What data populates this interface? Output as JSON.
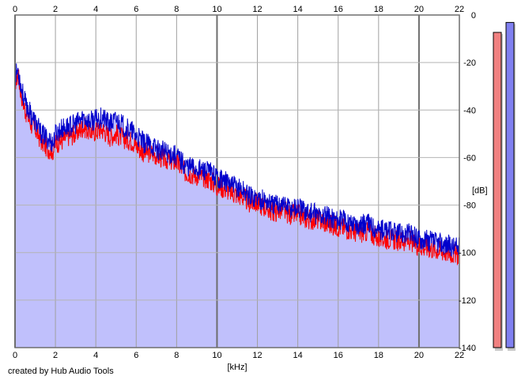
{
  "chart_data": {
    "type": "area",
    "xlabel": "[kHz]",
    "ylabel": "[dB]",
    "xlim": [
      0,
      22
    ],
    "ylim": [
      -140,
      0
    ],
    "x_ticks": [
      0,
      2,
      4,
      6,
      8,
      10,
      12,
      14,
      16,
      18,
      20,
      22
    ],
    "y_ticks": [
      0,
      -20,
      -40,
      -60,
      -80,
      -100,
      -120,
      -140
    ],
    "grid": true,
    "credit": "created by Hub Audio Tools",
    "colors": {
      "fill": "#c0c0fc",
      "red_trace": "#ff0000",
      "blue_trace": "#0000cc",
      "left_meter": "#f08080",
      "right_meter": "#8080f0"
    },
    "series": [
      {
        "color": "red",
        "x": [
          0,
          0.15,
          0.3,
          0.5,
          0.8,
          1.0,
          1.3,
          1.6,
          1.9,
          2.0,
          2.3,
          2.6,
          3.0,
          3.4,
          3.7,
          4.0,
          4.3,
          4.7,
          5.0,
          5.4,
          5.8,
          6.0,
          6.4,
          6.8,
          7.2,
          7.6,
          8.0,
          8.4,
          8.8,
          9.2,
          9.6,
          10.0,
          10.4,
          10.8,
          11.2,
          11.6,
          12.0,
          12.4,
          12.8,
          13.2,
          13.6,
          14.0,
          14.5,
          15.0,
          15.5,
          16.0,
          16.5,
          17.0,
          17.5,
          18.0,
          18.5,
          19.0,
          19.5,
          20.0,
          20.5,
          21.0,
          21.5,
          22.0
        ],
        "y": [
          -28,
          -25,
          -33,
          -40,
          -46,
          -48,
          -53,
          -56,
          -57,
          -54,
          -53,
          -51,
          -50,
          -47,
          -49,
          -49,
          -48,
          -51,
          -50,
          -52,
          -53,
          -55,
          -58,
          -58,
          -60,
          -61,
          -62,
          -66,
          -67,
          -68,
          -69,
          -72,
          -73,
          -75,
          -76,
          -79,
          -79,
          -81,
          -83,
          -82,
          -84,
          -84,
          -86,
          -86,
          -88,
          -89,
          -90,
          -92,
          -91,
          -94,
          -94,
          -95,
          -95,
          -97,
          -98,
          -99,
          -100,
          -101
        ]
      },
      {
        "color": "blue",
        "x": [
          0,
          0.15,
          0.3,
          0.5,
          0.8,
          1.0,
          1.3,
          1.6,
          1.9,
          2.0,
          2.3,
          2.6,
          3.0,
          3.4,
          3.7,
          4.0,
          4.3,
          4.7,
          5.0,
          5.4,
          5.8,
          6.0,
          6.4,
          6.8,
          7.2,
          7.6,
          8.0,
          8.4,
          8.8,
          9.2,
          9.6,
          10.0,
          10.4,
          10.8,
          11.2,
          11.6,
          12.0,
          12.4,
          12.8,
          13.2,
          13.6,
          14.0,
          14.5,
          15.0,
          15.5,
          16.0,
          16.5,
          17.0,
          17.5,
          18.0,
          18.5,
          19.0,
          19.5,
          20.0,
          20.5,
          21.0,
          21.5,
          22.0
        ],
        "y": [
          -26,
          -23,
          -30,
          -37,
          -42,
          -45,
          -50,
          -52,
          -54,
          -50,
          -48,
          -47,
          -46,
          -43,
          -45,
          -44,
          -43,
          -46,
          -44,
          -47,
          -49,
          -51,
          -54,
          -55,
          -57,
          -58,
          -59,
          -63,
          -64,
          -65,
          -66,
          -68,
          -70,
          -72,
          -73,
          -76,
          -77,
          -78,
          -80,
          -79,
          -81,
          -81,
          -83,
          -84,
          -85,
          -86,
          -87,
          -88,
          -88,
          -90,
          -91,
          -92,
          -92,
          -94,
          -95,
          -96,
          -97,
          -98
        ]
      }
    ],
    "meters": [
      {
        "channel": "left",
        "level": 0.95
      },
      {
        "channel": "right",
        "level": 0.98
      }
    ]
  }
}
